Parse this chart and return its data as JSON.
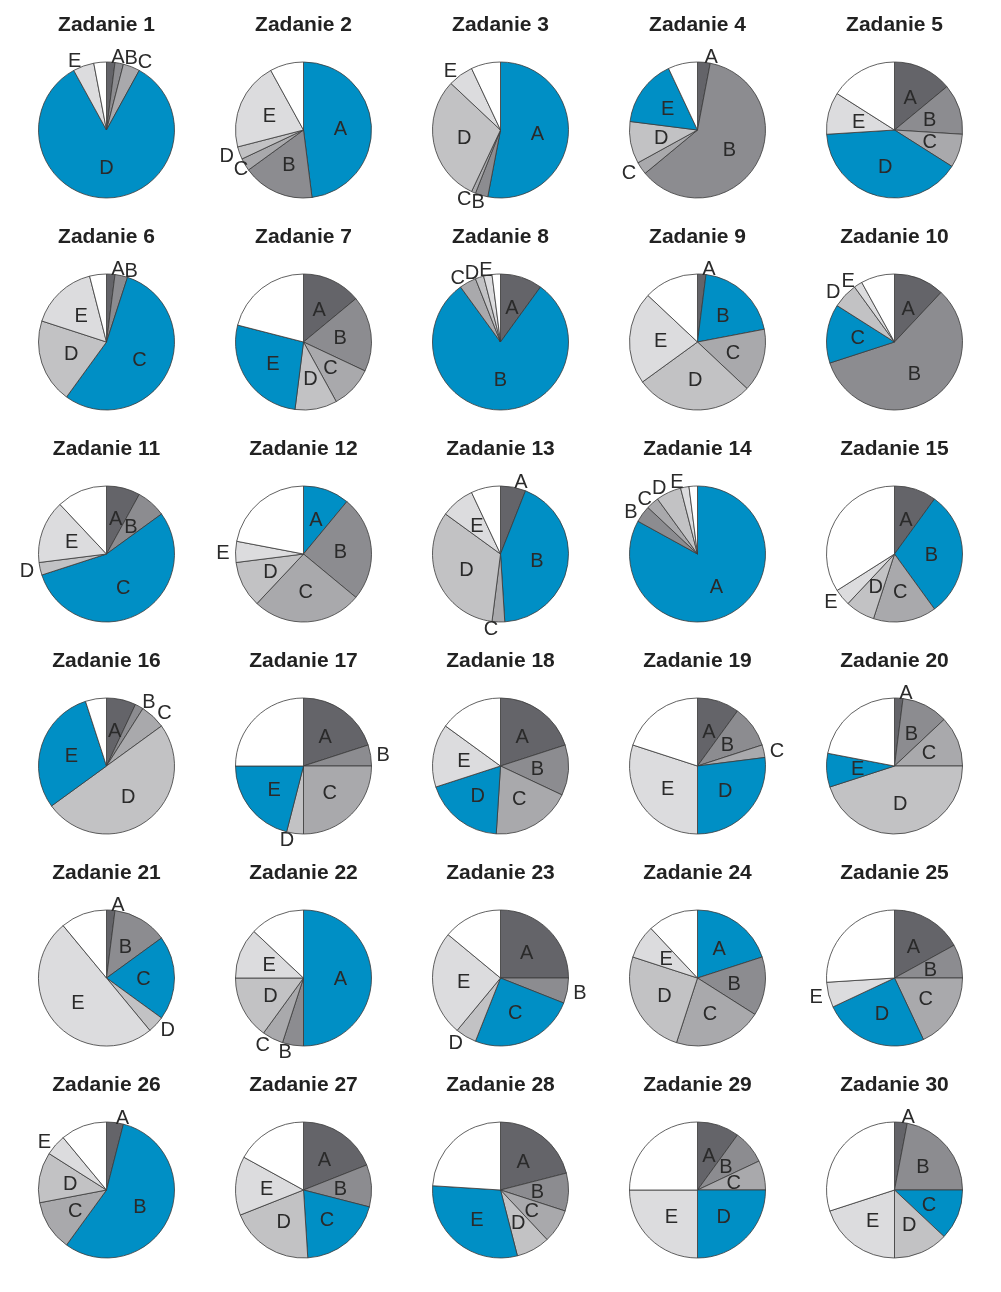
{
  "chart_data": [
    {
      "type": "pie",
      "title": "Zadanie 1",
      "categories": [
        "A",
        "B",
        "C",
        "D",
        "E",
        null
      ],
      "values": [
        2,
        2,
        4,
        84,
        5,
        3
      ],
      "colors": [
        "#646469",
        "#8c8c90",
        "#a9a9ac",
        "#008fc5",
        "#dcdcde",
        "#ffffff"
      ]
    },
    {
      "type": "pie",
      "title": "Zadanie 2",
      "categories": [
        "A",
        "B",
        "C",
        "D",
        "E",
        null
      ],
      "values": [
        48,
        17,
        3,
        3,
        21,
        8
      ],
      "colors": [
        "#008fc5",
        "#8c8c90",
        "#a9a9ac",
        "#c2c2c4",
        "#dcdcde",
        "#ffffff"
      ]
    },
    {
      "type": "pie",
      "title": "Zadanie 3",
      "categories": [
        "A",
        "B",
        "C",
        "D",
        "E",
        null
      ],
      "values": [
        53,
        3,
        1,
        30,
        6,
        7
      ],
      "colors": [
        "#008fc5",
        "#8c8c90",
        "#a9a9ac",
        "#c2c2c4",
        "#dcdcde",
        "#ffffff"
      ]
    },
    {
      "type": "pie",
      "title": "Zadanie 4",
      "categories": [
        "A",
        "B",
        "C",
        "D",
        "E",
        null
      ],
      "values": [
        3,
        61,
        3,
        10,
        16,
        7
      ],
      "colors": [
        "#646469",
        "#8c8c90",
        "#a9a9ac",
        "#c2c2c4",
        "#008fc5",
        "#ffffff"
      ]
    },
    {
      "type": "pie",
      "title": "Zadanie 5",
      "categories": [
        "A",
        "B",
        "C",
        "D",
        "E",
        null
      ],
      "values": [
        14,
        12,
        8,
        40,
        10,
        16
      ],
      "colors": [
        "#646469",
        "#8c8c90",
        "#a9a9ac",
        "#008fc5",
        "#dcdcde",
        "#ffffff"
      ]
    },
    {
      "type": "pie",
      "title": "Zadanie 6",
      "categories": [
        "A",
        "B",
        "C",
        "D",
        "E",
        null
      ],
      "values": [
        2,
        3,
        55,
        20,
        16,
        4
      ],
      "colors": [
        "#646469",
        "#8c8c90",
        "#008fc5",
        "#c2c2c4",
        "#dcdcde",
        "#ffffff"
      ]
    },
    {
      "type": "pie",
      "title": "Zadanie 7",
      "categories": [
        "A",
        "B",
        "C",
        "D",
        "E",
        null
      ],
      "values": [
        14,
        18,
        10,
        10,
        27,
        21
      ],
      "colors": [
        "#646469",
        "#8c8c90",
        "#a9a9ac",
        "#c2c2c4",
        "#008fc5",
        "#ffffff"
      ]
    },
    {
      "type": "pie",
      "title": "Zadanie 8",
      "categories": [
        "A",
        "B",
        "C",
        "D",
        "E",
        null
      ],
      "values": [
        10,
        80,
        4,
        2,
        2,
        2
      ],
      "colors": [
        "#646469",
        "#008fc5",
        "#a9a9ac",
        "#c2c2c4",
        "#dcdcde",
        "#ffffff"
      ]
    },
    {
      "type": "pie",
      "title": "Zadanie 9",
      "categories": [
        "A",
        "B",
        "C",
        "D",
        "E",
        null
      ],
      "values": [
        2,
        20,
        15,
        28,
        22,
        13
      ],
      "colors": [
        "#646469",
        "#008fc5",
        "#a9a9ac",
        "#c2c2c4",
        "#dcdcde",
        "#ffffff"
      ]
    },
    {
      "type": "pie",
      "title": "Zadanie 10",
      "categories": [
        "A",
        "B",
        "C",
        "D",
        "E",
        null
      ],
      "values": [
        12,
        58,
        14,
        6,
        2,
        8
      ],
      "colors": [
        "#646469",
        "#8c8c90",
        "#008fc5",
        "#c2c2c4",
        "#dcdcde",
        "#ffffff"
      ]
    },
    {
      "type": "pie",
      "title": "Zadanie 11",
      "categories": [
        "A",
        "B",
        "C",
        "D",
        "E",
        null
      ],
      "values": [
        8,
        7,
        55,
        3,
        15,
        12
      ],
      "colors": [
        "#646469",
        "#8c8c90",
        "#008fc5",
        "#c2c2c4",
        "#dcdcde",
        "#ffffff"
      ]
    },
    {
      "type": "pie",
      "title": "Zadanie 12",
      "categories": [
        "A",
        "B",
        "C",
        "D",
        "E",
        null
      ],
      "values": [
        11,
        25,
        26,
        11,
        5,
        22
      ],
      "colors": [
        "#008fc5",
        "#8c8c90",
        "#a9a9ac",
        "#c2c2c4",
        "#dcdcde",
        "#ffffff"
      ]
    },
    {
      "type": "pie",
      "title": "Zadanie 13",
      "categories": [
        "A",
        "B",
        "C",
        "D",
        "E",
        null
      ],
      "values": [
        6,
        43,
        3,
        33,
        8,
        7
      ],
      "colors": [
        "#646469",
        "#008fc5",
        "#a9a9ac",
        "#c2c2c4",
        "#dcdcde",
        "#ffffff"
      ]
    },
    {
      "type": "pie",
      "title": "Zadanie 14",
      "categories": [
        "A",
        "B",
        "C",
        "D",
        "E",
        null
      ],
      "values": [
        83,
        4,
        3,
        6,
        2,
        2
      ],
      "colors": [
        "#008fc5",
        "#8c8c90",
        "#a9a9ac",
        "#c2c2c4",
        "#dcdcde",
        "#ffffff"
      ]
    },
    {
      "type": "pie",
      "title": "Zadanie 15",
      "categories": [
        "A",
        "B",
        "C",
        "D",
        "E",
        null
      ],
      "values": [
        10,
        30,
        15,
        7,
        4,
        34
      ],
      "colors": [
        "#646469",
        "#008fc5",
        "#a9a9ac",
        "#c2c2c4",
        "#dcdcde",
        "#ffffff"
      ]
    },
    {
      "type": "pie",
      "title": "Zadanie 16",
      "categories": [
        "A",
        "B",
        "C",
        "D",
        "E",
        null
      ],
      "values": [
        7,
        2,
        6,
        50,
        30,
        5
      ],
      "colors": [
        "#646469",
        "#8c8c90",
        "#a9a9ac",
        "#c2c2c4",
        "#008fc5",
        "#ffffff"
      ]
    },
    {
      "type": "pie",
      "title": "Zadanie 17",
      "categories": [
        "A",
        "B",
        "C",
        "D",
        "E",
        null
      ],
      "values": [
        20,
        5,
        25,
        4,
        21,
        25
      ],
      "colors": [
        "#646469",
        "#8c8c90",
        "#a9a9ac",
        "#c2c2c4",
        "#008fc5",
        "#ffffff"
      ]
    },
    {
      "type": "pie",
      "title": "Zadanie 18",
      "categories": [
        "A",
        "B",
        "C",
        "D",
        "E",
        null
      ],
      "values": [
        20,
        12,
        19,
        19,
        15,
        15
      ],
      "colors": [
        "#646469",
        "#8c8c90",
        "#a9a9ac",
        "#008fc5",
        "#dcdcde",
        "#ffffff"
      ]
    },
    {
      "type": "pie",
      "title": "Zadanie 19",
      "categories": [
        "A",
        "B",
        "C",
        "D",
        "E",
        null
      ],
      "values": [
        10,
        10,
        3,
        27,
        30,
        20
      ],
      "colors": [
        "#646469",
        "#8c8c90",
        "#a9a9ac",
        "#008fc5",
        "#dcdcde",
        "#ffffff"
      ]
    },
    {
      "type": "pie",
      "title": "Zadanie 20",
      "categories": [
        "A",
        "B",
        "C",
        "D",
        "E",
        null
      ],
      "values": [
        2,
        11,
        12,
        45,
        8,
        22
      ],
      "colors": [
        "#646469",
        "#8c8c90",
        "#a9a9ac",
        "#c2c2c4",
        "#008fc5",
        "#ffffff"
      ]
    },
    {
      "type": "pie",
      "title": "Zadanie 21",
      "categories": [
        "A",
        "B",
        "C",
        "D",
        "E",
        null
      ],
      "values": [
        2,
        13,
        20,
        4,
        50,
        11
      ],
      "colors": [
        "#646469",
        "#8c8c90",
        "#008fc5",
        "#c2c2c4",
        "#dcdcde",
        "#ffffff"
      ]
    },
    {
      "type": "pie",
      "title": "Zadanie 22",
      "categories": [
        "A",
        "B",
        "C",
        "D",
        "E",
        null
      ],
      "values": [
        50,
        5,
        5,
        15,
        12,
        13
      ],
      "colors": [
        "#008fc5",
        "#8c8c90",
        "#a9a9ac",
        "#c2c2c4",
        "#dcdcde",
        "#ffffff"
      ]
    },
    {
      "type": "pie",
      "title": "Zadanie 23",
      "categories": [
        "A",
        "B",
        "C",
        "D",
        "E",
        null
      ],
      "values": [
        25,
        6,
        25,
        5,
        25,
        14
      ],
      "colors": [
        "#646469",
        "#8c8c90",
        "#008fc5",
        "#c2c2c4",
        "#dcdcde",
        "#ffffff"
      ]
    },
    {
      "type": "pie",
      "title": "Zadanie 24",
      "categories": [
        "A",
        "B",
        "C",
        "D",
        "E",
        null
      ],
      "values": [
        20,
        14,
        21,
        25,
        8,
        12
      ],
      "colors": [
        "#008fc5",
        "#8c8c90",
        "#a9a9ac",
        "#c2c2c4",
        "#dcdcde",
        "#ffffff"
      ]
    },
    {
      "type": "pie",
      "title": "Zadanie 25",
      "categories": [
        "A",
        "B",
        "C",
        "D",
        "E",
        null
      ],
      "values": [
        17,
        8,
        18,
        25,
        6,
        26
      ],
      "colors": [
        "#646469",
        "#8c8c90",
        "#a9a9ac",
        "#008fc5",
        "#dcdcde",
        "#ffffff"
      ]
    },
    {
      "type": "pie",
      "title": "Zadanie 26",
      "categories": [
        "A",
        "B",
        "C",
        "D",
        "E",
        null
      ],
      "values": [
        4,
        56,
        12,
        12,
        5,
        11
      ],
      "colors": [
        "#646469",
        "#008fc5",
        "#a9a9ac",
        "#c2c2c4",
        "#dcdcde",
        "#ffffff"
      ]
    },
    {
      "type": "pie",
      "title": "Zadanie 27",
      "categories": [
        "A",
        "B",
        "C",
        "D",
        "E",
        null
      ],
      "values": [
        19,
        10,
        20,
        20,
        14,
        17
      ],
      "colors": [
        "#646469",
        "#8c8c90",
        "#008fc5",
        "#c2c2c4",
        "#dcdcde",
        "#ffffff"
      ]
    },
    {
      "type": "pie",
      "title": "Zadanie 28",
      "categories": [
        "A",
        "B",
        "C",
        "D",
        "E",
        null
      ],
      "values": [
        21,
        9,
        8,
        8,
        30,
        24
      ],
      "colors": [
        "#646469",
        "#8c8c90",
        "#a9a9ac",
        "#c2c2c4",
        "#008fc5",
        "#ffffff"
      ]
    },
    {
      "type": "pie",
      "title": "Zadanie 29",
      "categories": [
        "A",
        "B",
        "C",
        "D",
        "E",
        null
      ],
      "values": [
        10,
        8,
        7,
        25,
        25,
        25
      ],
      "colors": [
        "#646469",
        "#8c8c90",
        "#a9a9ac",
        "#008fc5",
        "#dcdcde",
        "#ffffff"
      ]
    },
    {
      "type": "pie",
      "title": "Zadanie 30",
      "categories": [
        "A",
        "B",
        "C",
        "D",
        "E",
        null
      ],
      "values": [
        3,
        22,
        12,
        13,
        20,
        30
      ],
      "colors": [
        "#646469",
        "#8c8c90",
        "#008fc5",
        "#c2c2c4",
        "#dcdcde",
        "#ffffff"
      ]
    }
  ]
}
